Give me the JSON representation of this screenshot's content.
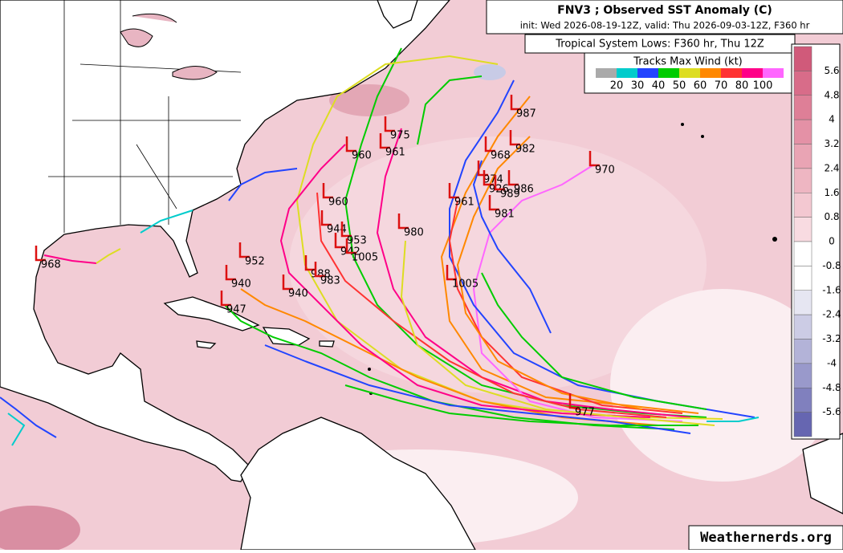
{
  "header": {
    "title": "FNV3 ; Observed SST Anomaly (C)",
    "subtitle": "init: Wed 2026-08-19-12Z, valid: Thu 2026-09-03-12Z, F360 hr"
  },
  "tracks_legend": {
    "title": "Tropical System Lows: F360 hr, Thu 12Z",
    "subtitle": "Tracks Max Wind (kt)",
    "labels": [
      "20",
      "30",
      "40",
      "50",
      "60",
      "70",
      "80",
      "100"
    ]
  },
  "colorbar": {
    "labels": [
      "5.6",
      "4.8",
      "4",
      "3.2",
      "2.4",
      "1.6",
      "0.8",
      "0",
      "-0.8",
      "-1.6",
      "-2.4",
      "-3.2",
      "-4",
      "-4.8",
      "-5.6"
    ]
  },
  "lows": [
    {
      "label": "987"
    },
    {
      "label": "975"
    },
    {
      "label": "961"
    },
    {
      "label": "960"
    },
    {
      "label": "968"
    },
    {
      "label": "982"
    },
    {
      "label": "970"
    },
    {
      "label": "974"
    },
    {
      "label": "926"
    },
    {
      "label": "989"
    },
    {
      "label": "986"
    },
    {
      "label": "960"
    },
    {
      "label": "961"
    },
    {
      "label": "981"
    },
    {
      "label": "980"
    },
    {
      "label": "944"
    },
    {
      "label": "953"
    },
    {
      "label": "942"
    },
    {
      "label": "1005"
    },
    {
      "label": "952"
    },
    {
      "label": "988"
    },
    {
      "label": "983"
    },
    {
      "label": "940"
    },
    {
      "label": "940"
    },
    {
      "label": "1005"
    },
    {
      "label": "947"
    },
    {
      "label": "968"
    },
    {
      "label": "977"
    }
  ],
  "watermark": "Weathernerds.org"
}
